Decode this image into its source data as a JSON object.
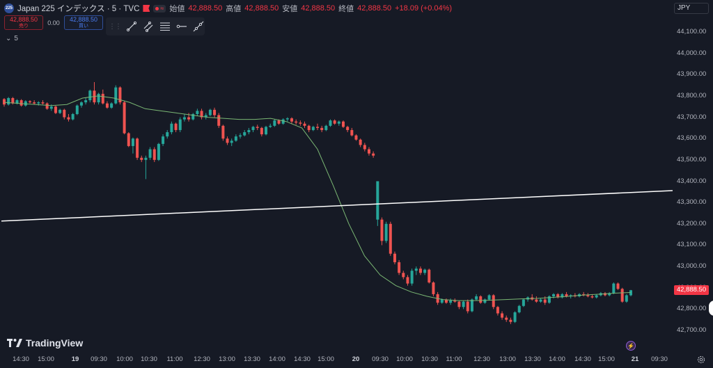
{
  "header": {
    "symbol_badge": "225",
    "symbol_title": "Japan 225 インデックス · 5 · TVC",
    "ohlc": [
      {
        "label": "始値",
        "value": "42,888.50"
      },
      {
        "label": "高値",
        "value": "42,888.50"
      },
      {
        "label": "安値",
        "value": "42,888.50"
      },
      {
        "label": "終値",
        "value": "42,888.50"
      }
    ],
    "change": "+18.09 (+0.04%)",
    "currency": "JPY"
  },
  "trade": {
    "sell_price": "42,888.50",
    "sell_label": "売り",
    "spread": "0.00",
    "buy_price": "42,888.50",
    "buy_label": "買い"
  },
  "toolbar": {
    "tools": [
      "trend-line-icon",
      "parallel-channel-icon",
      "fib-retracement-icon",
      "horizontal-ray-icon",
      "extended-line-icon"
    ]
  },
  "interval_label": "5",
  "branding": "TradingView",
  "alert_icon": "lightning-icon",
  "settings_icon": "gear-icon",
  "colors": {
    "background": "#161a25",
    "up": "#26a69a",
    "down": "#ef5350",
    "ma": "#7bb874",
    "trendline": "#ffffff",
    "last_price": "#f23645"
  },
  "chart_data": {
    "type": "candlestick",
    "y_ticks": [
      "44,100.00",
      "44,000.00",
      "43,900.00",
      "43,800.00",
      "43,700.00",
      "43,600.00",
      "43,500.00",
      "43,400.00",
      "43,300.00",
      "43,200.00",
      "43,100.00",
      "43,000.00",
      "42,900.00",
      "42,800.00",
      "42,700.00"
    ],
    "y_tick_values": [
      44100,
      44000,
      43900,
      43800,
      43700,
      43600,
      43500,
      43400,
      43300,
      43200,
      43100,
      43000,
      42900,
      42800,
      42700
    ],
    "x_ticks": [
      "14:30",
      "15:00",
      "19",
      "09:30",
      "10:00",
      "10:30",
      "11:00",
      "12:30",
      "13:00",
      "13:30",
      "14:00",
      "14:30",
      "15:00",
      "20",
      "09:30",
      "10:00",
      "10:30",
      "11:00",
      "12:30",
      "13:00",
      "13:30",
      "14:00",
      "14:30",
      "15:00",
      "21",
      "09:30"
    ],
    "bold_x_ticks": [
      "19",
      "20",
      "21"
    ],
    "last_price": 42888.5,
    "last_price_label": "42,888.50",
    "trendline": [
      {
        "time": "18 14:10",
        "value": 43213
      },
      {
        "time": "20 15:45",
        "value": 43356
      }
    ],
    "candles": [
      [
        43785,
        43790,
        43750,
        43760
      ],
      [
        43760,
        43795,
        43755,
        43790
      ],
      [
        43790,
        43795,
        43760,
        43765
      ],
      [
        43765,
        43785,
        43760,
        43780
      ],
      [
        43780,
        43785,
        43750,
        43755
      ],
      [
        43755,
        43780,
        43750,
        43775
      ],
      [
        43775,
        43780,
        43765,
        43770
      ],
      [
        43770,
        43780,
        43760,
        43765
      ],
      [
        43765,
        43775,
        43755,
        43770
      ],
      [
        43770,
        43780,
        43760,
        43765
      ],
      [
        43765,
        43770,
        43735,
        43740
      ],
      [
        43740,
        43760,
        43730,
        43750
      ],
      [
        43750,
        43755,
        43715,
        43720
      ],
      [
        43720,
        43740,
        43715,
        43735
      ],
      [
        43735,
        43740,
        43690,
        43700
      ],
      [
        43700,
        43715,
        43680,
        43690
      ],
      [
        43690,
        43720,
        43685,
        43715
      ],
      [
        43715,
        43760,
        43710,
        43755
      ],
      [
        43755,
        43775,
        43745,
        43770
      ],
      [
        43770,
        43790,
        43760,
        43780
      ],
      [
        43780,
        43830,
        43770,
        43825
      ],
      [
        43825,
        43865,
        43760,
        43770
      ],
      [
        43770,
        43815,
        43760,
        43810
      ],
      [
        43810,
        43830,
        43760,
        43765
      ],
      [
        43765,
        43775,
        43740,
        43745
      ],
      [
        43745,
        43770,
        43740,
        43765
      ],
      [
        43765,
        43850,
        43760,
        43840
      ],
      [
        43840,
        43845,
        43760,
        43770
      ],
      [
        43770,
        43775,
        43620,
        43625
      ],
      [
        43625,
        43630,
        43560,
        43565
      ],
      [
        43565,
        43605,
        43530,
        43600
      ],
      [
        43600,
        43605,
        43500,
        43510
      ],
      [
        43510,
        43520,
        43490,
        43500
      ],
      [
        43500,
        43520,
        43410,
        43510
      ],
      [
        43510,
        43560,
        43500,
        43550
      ],
      [
        43550,
        43560,
        43490,
        43500
      ],
      [
        43500,
        43580,
        43495,
        43575
      ],
      [
        43575,
        43620,
        43565,
        43610
      ],
      [
        43610,
        43640,
        43600,
        43630
      ],
      [
        43630,
        43680,
        43620,
        43670
      ],
      [
        43670,
        43675,
        43630,
        43640
      ],
      [
        43640,
        43700,
        43630,
        43690
      ],
      [
        43690,
        43715,
        43680,
        43700
      ],
      [
        43700,
        43720,
        43680,
        43690
      ],
      [
        43690,
        43720,
        43685,
        43715
      ],
      [
        43715,
        43740,
        43705,
        43730
      ],
      [
        43730,
        43740,
        43690,
        43700
      ],
      [
        43700,
        43720,
        43690,
        43710
      ],
      [
        43710,
        43740,
        43705,
        43735
      ],
      [
        43735,
        43745,
        43700,
        43710
      ],
      [
        43710,
        43720,
        43650,
        43660
      ],
      [
        43660,
        43665,
        43590,
        43600
      ],
      [
        43600,
        43610,
        43570,
        43580
      ],
      [
        43580,
        43600,
        43565,
        43590
      ],
      [
        43590,
        43620,
        43585,
        43610
      ],
      [
        43610,
        43625,
        43600,
        43615
      ],
      [
        43615,
        43640,
        43610,
        43630
      ],
      [
        43630,
        43650,
        43620,
        43640
      ],
      [
        43640,
        43660,
        43630,
        43655
      ],
      [
        43655,
        43665,
        43640,
        43650
      ],
      [
        43650,
        43655,
        43610,
        43620
      ],
      [
        43620,
        43660,
        43615,
        43655
      ],
      [
        43655,
        43670,
        43650,
        43660
      ],
      [
        43660,
        43690,
        43655,
        43685
      ],
      [
        43685,
        43690,
        43665,
        43670
      ],
      [
        43670,
        43695,
        43665,
        43690
      ],
      [
        43690,
        43700,
        43680,
        43695
      ],
      [
        43695,
        43700,
        43670,
        43680
      ],
      [
        43680,
        43690,
        43665,
        43675
      ],
      [
        43675,
        43685,
        43660,
        43670
      ],
      [
        43670,
        43680,
        43650,
        43660
      ],
      [
        43660,
        43665,
        43630,
        43640
      ],
      [
        43640,
        43660,
        43635,
        43655
      ],
      [
        43655,
        43670,
        43640,
        43650
      ],
      [
        43650,
        43660,
        43630,
        43640
      ],
      [
        43640,
        43665,
        43635,
        43660
      ],
      [
        43660,
        43690,
        43655,
        43685
      ],
      [
        43685,
        43690,
        43665,
        43670
      ],
      [
        43670,
        43685,
        43660,
        43680
      ],
      [
        43680,
        43685,
        43650,
        43655
      ],
      [
        43655,
        43660,
        43630,
        43640
      ],
      [
        43640,
        43650,
        43610,
        43615
      ],
      [
        43615,
        43620,
        43590,
        43595
      ],
      [
        43595,
        43600,
        43560,
        43570
      ],
      [
        43570,
        43580,
        43540,
        43550
      ],
      [
        43550,
        43560,
        43520,
        43530
      ],
      [
        43530,
        43540,
        43510,
        43520
      ],
      [
        43220,
        43400,
        43190,
        43400
      ],
      [
        43220,
        43230,
        43100,
        43120
      ],
      [
        43120,
        43210,
        43110,
        43200
      ],
      [
        43200,
        43210,
        43050,
        43060
      ],
      [
        43060,
        43070,
        43010,
        43020
      ],
      [
        43020,
        43030,
        42960,
        42970
      ],
      [
        42970,
        42980,
        42940,
        42950
      ],
      [
        42950,
        42960,
        42910,
        42920
      ],
      [
        42920,
        42990,
        42910,
        42980
      ],
      [
        42980,
        43000,
        42960,
        42990
      ],
      [
        42990,
        43000,
        42960,
        42970
      ],
      [
        42970,
        42990,
        42960,
        42985
      ],
      [
        42985,
        42990,
        42920,
        42925
      ],
      [
        42925,
        42930,
        42860,
        42870
      ],
      [
        42870,
        42880,
        42820,
        42830
      ],
      [
        42830,
        42850,
        42825,
        42845
      ],
      [
        42845,
        42850,
        42825,
        42830
      ],
      [
        42830,
        42850,
        42820,
        42840
      ],
      [
        42840,
        42850,
        42830,
        42835
      ],
      [
        42835,
        42840,
        42800,
        42810
      ],
      [
        42810,
        42840,
        42800,
        42835
      ],
      [
        42835,
        42845,
        42780,
        42790
      ],
      [
        42790,
        42850,
        42785,
        42845
      ],
      [
        42845,
        42870,
        42840,
        42860
      ],
      [
        42860,
        42865,
        42825,
        42830
      ],
      [
        42830,
        42850,
        42825,
        42845
      ],
      [
        42845,
        42870,
        42840,
        42865
      ],
      [
        42865,
        42870,
        42800,
        42810
      ],
      [
        42810,
        42815,
        42770,
        42780
      ],
      [
        42780,
        42790,
        42750,
        42760
      ],
      [
        42760,
        42770,
        42740,
        42750
      ],
      [
        42750,
        42760,
        42730,
        42740
      ],
      [
        42740,
        42790,
        42735,
        42785
      ],
      [
        42785,
        42820,
        42780,
        42815
      ],
      [
        42815,
        42850,
        42810,
        42845
      ],
      [
        42845,
        42860,
        42835,
        42855
      ],
      [
        42855,
        42870,
        42840,
        42845
      ],
      [
        42845,
        42860,
        42830,
        42835
      ],
      [
        42835,
        42850,
        42830,
        42845
      ],
      [
        42845,
        42860,
        42820,
        42830
      ],
      [
        42830,
        42865,
        42825,
        42860
      ],
      [
        42860,
        42875,
        42850,
        42870
      ],
      [
        42870,
        42875,
        42850,
        42855
      ],
      [
        42855,
        42875,
        42850,
        42870
      ],
      [
        42870,
        42880,
        42855,
        42860
      ],
      [
        42860,
        42870,
        42850,
        42865
      ],
      [
        42865,
        42875,
        42855,
        42860
      ],
      [
        42860,
        42875,
        42855,
        42870
      ],
      [
        42870,
        42880,
        42860,
        42865
      ],
      [
        42865,
        42875,
        42855,
        42860
      ],
      [
        42860,
        42870,
        42850,
        42855
      ],
      [
        42855,
        42870,
        42850,
        42865
      ],
      [
        42865,
        42880,
        42860,
        42875
      ],
      [
        42875,
        42880,
        42860,
        42865
      ],
      [
        42865,
        42880,
        42860,
        42875
      ],
      [
        42875,
        42925,
        42870,
        42920
      ],
      [
        42920,
        42925,
        42890,
        42895
      ],
      [
        42895,
        42900,
        42830,
        42835
      ],
      [
        42835,
        42870,
        42830,
        42865
      ],
      [
        42865,
        42890,
        42860,
        42888.5
      ]
    ],
    "ma_points": [
      [
        "0",
        43770
      ],
      [
        "10",
        43765
      ],
      [
        "20",
        43760
      ],
      [
        "30",
        43755
      ],
      [
        "40",
        43760
      ],
      [
        "50",
        43790
      ],
      [
        "60",
        43800
      ],
      [
        "70",
        43790
      ],
      [
        "80",
        43770
      ],
      [
        "90",
        43740
      ],
      [
        "100",
        43730
      ],
      [
        "110",
        43720
      ],
      [
        "120",
        43710
      ],
      [
        "130",
        43700
      ],
      [
        "140",
        43695
      ],
      [
        "150",
        43690
      ],
      [
        "160",
        43690
      ],
      [
        "170",
        43695
      ],
      [
        "180",
        43680
      ],
      [
        "190",
        43650
      ],
      [
        "200",
        43550
      ],
      [
        "210",
        43380
      ],
      [
        "220",
        43200
      ],
      [
        "230",
        43050
      ],
      [
        "240",
        42960
      ],
      [
        "250",
        42910
      ],
      [
        "260",
        42880
      ],
      [
        "270",
        42860
      ],
      [
        "280",
        42845
      ],
      [
        "290",
        42840
      ],
      [
        "300",
        42840
      ],
      [
        "310",
        42842
      ],
      [
        "320",
        42845
      ],
      [
        "330",
        42848
      ],
      [
        "340",
        42850
      ],
      [
        "350",
        42855
      ],
      [
        "360",
        42860
      ],
      [
        "370",
        42866
      ],
      [
        "380",
        42870
      ],
      [
        "390",
        42875
      ],
      [
        "400",
        42878
      ]
    ]
  }
}
